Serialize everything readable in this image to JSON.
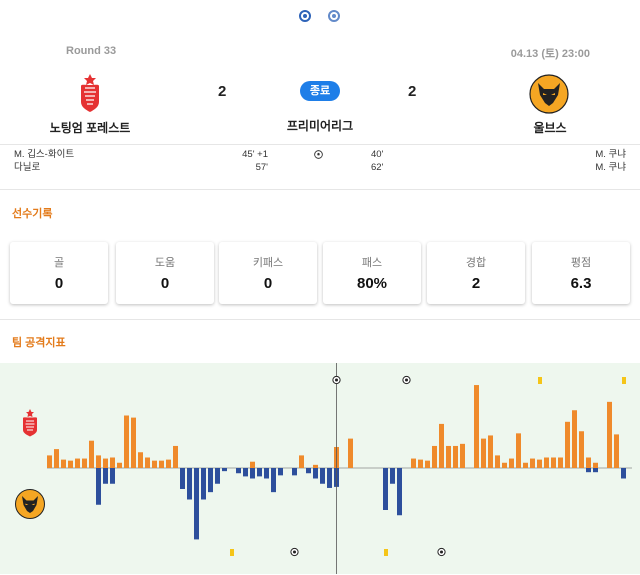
{
  "header": {
    "round": "Round 33",
    "datetime": "04.13 (토) 23:00",
    "status": "종료",
    "league": "프리미어리그"
  },
  "home": {
    "name": "노팅엄 포레스트",
    "score": "2",
    "logo_color": "#e53233"
  },
  "away": {
    "name": "울브스",
    "score": "2",
    "logo_color": "#f5a623"
  },
  "goals": {
    "home": [
      {
        "scorer": "M. 깁스-화이트",
        "minute": "45' +1"
      },
      {
        "scorer": "다닐로",
        "minute": "57'"
      }
    ],
    "away": [
      {
        "scorer": "M. 쿠냐",
        "minute": "40'"
      },
      {
        "scorer": "M. 쿠냐",
        "minute": "62'"
      }
    ]
  },
  "player_record": {
    "title": "선수기록",
    "stats": [
      {
        "label": "골",
        "value": "0"
      },
      {
        "label": "도움",
        "value": "0"
      },
      {
        "label": "키패스",
        "value": "0"
      },
      {
        "label": "패스",
        "value": "80%"
      },
      {
        "label": "경합",
        "value": "2"
      },
      {
        "label": "평점",
        "value": "6.3"
      }
    ]
  },
  "attack_index": {
    "title": "팀 공격지표"
  },
  "colors": {
    "accent": "#e37b1b",
    "home_bar": "#ef8a2b",
    "away_bar": "#2d4f9c",
    "badge": "#1e7ee8",
    "card_yellow": "#f5c518"
  },
  "chart_data": {
    "type": "bar",
    "home_series": [
      1.2,
      1.8,
      0.8,
      0.7,
      0.9,
      0.9,
      2.6,
      1.2,
      0.9,
      1.0,
      0.5,
      5.0,
      4.8,
      1.5,
      1.0,
      0.7,
      0.7,
      0.8,
      2.1,
      0,
      0,
      0,
      0,
      0,
      0,
      0,
      0,
      0,
      0,
      0.6,
      0,
      0,
      0,
      0,
      0,
      0,
      1.2,
      0,
      0.3,
      0,
      0,
      2.0,
      0,
      2.8,
      0,
      0,
      0,
      0,
      0,
      0,
      0,
      0,
      0.9,
      0.8,
      0.7,
      2.1,
      4.2,
      2.1,
      2.1,
      2.3,
      0,
      7.9,
      2.8,
      3.1,
      1.2,
      0.5,
      0.9,
      3.3,
      0.5,
      0.9,
      0.8,
      1.0,
      1.0,
      1.0,
      4.4,
      5.5,
      3.5,
      1.0,
      0.5,
      0,
      6.3,
      3.2,
      0
    ],
    "away_series": [
      0,
      0,
      0,
      0,
      0,
      0,
      0,
      -3.5,
      -1.5,
      -1.5,
      0,
      0,
      0,
      0,
      0,
      0,
      0,
      0,
      0,
      -2.0,
      -3.0,
      -6.8,
      -3.0,
      -2.3,
      -1.5,
      -0.3,
      0,
      -0.5,
      -0.8,
      -1.0,
      -0.8,
      -1.0,
      -2.3,
      -0.7,
      0,
      -0.7,
      0,
      -0.5,
      -1.0,
      -1.5,
      -1.9,
      -1.8,
      0,
      0,
      0,
      0,
      0,
      0,
      -4.0,
      -1.5,
      -4.5,
      0,
      0,
      0,
      0,
      0,
      0,
      0,
      0,
      0,
      0,
      0,
      0,
      0,
      0,
      0,
      0,
      0,
      0,
      0,
      0,
      0,
      0,
      0,
      0,
      0,
      0,
      -0.4,
      -0.4,
      0,
      0,
      0,
      -1.0
    ],
    "halftime_index": 41,
    "home_goal_bins": [
      41,
      51
    ],
    "away_goal_bins": [
      35,
      56
    ],
    "home_card_bins": [
      70,
      82
    ],
    "away_card_bins": [
      26,
      48
    ]
  }
}
